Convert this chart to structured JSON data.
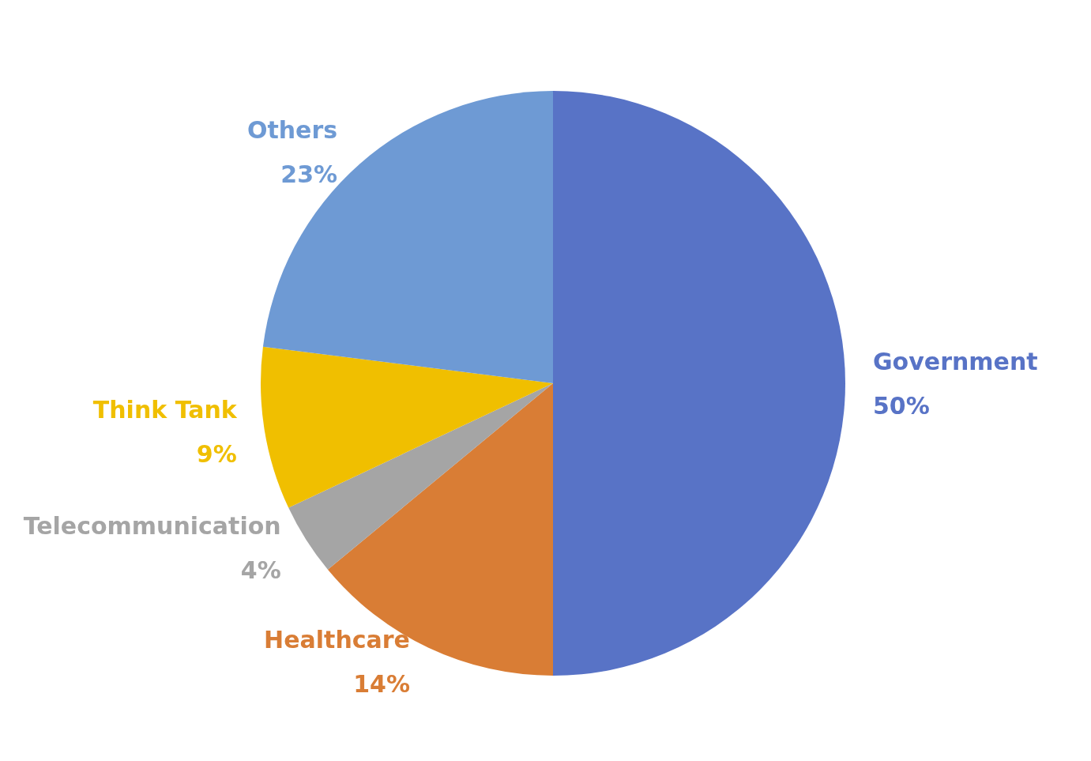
{
  "chart_data": {
    "type": "pie",
    "categories": [
      "Government",
      "Healthcare",
      "Telecommunication",
      "Think Tank",
      "Others"
    ],
    "values": [
      50,
      14,
      4,
      9,
      23
    ],
    "value_labels": [
      "50%",
      "14%",
      "4%",
      "9%",
      "23%"
    ],
    "colors": [
      "#5873c6",
      "#d97d35",
      "#a5a5a5",
      "#f0bf00",
      "#6e9ad4"
    ]
  }
}
